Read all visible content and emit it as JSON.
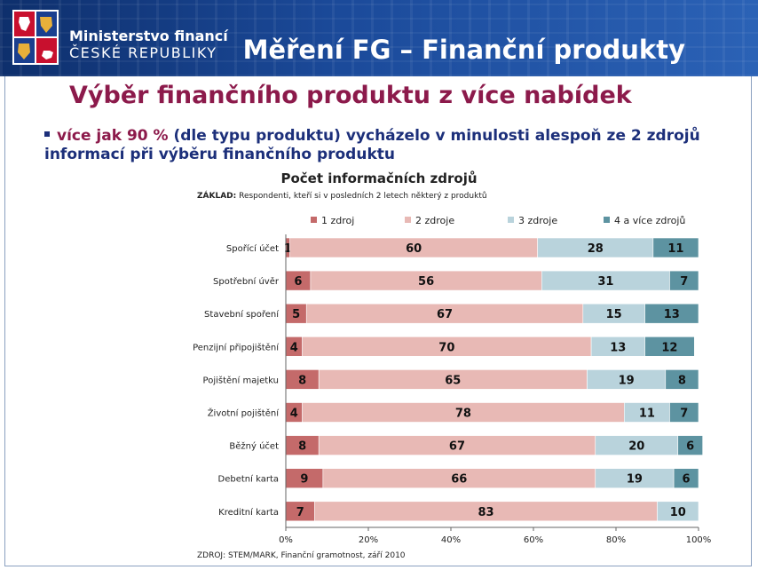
{
  "header": {
    "ministry_line1": "Ministerstvo financí",
    "ministry_line2": "ČESKÉ REPUBLIKY",
    "title": "Měření FG – Finanční produkty"
  },
  "slide": {
    "title": "Výběr finančního produktu z více nabídek",
    "bullet_highlight": "více jak 90 %",
    "bullet_rest": " (dle typu produktu) vycházelo v minulosti alespoň ze 2 zdrojů informací při výběru finančního produktu"
  },
  "zaklad": {
    "label": "ZÁKLAD:",
    "text": " Respondenti, kteří si v posledních 2 letech některý z produktů"
  },
  "source": "ZDROJ: STEM/MARK, Finanční gramotnost, září 2010",
  "colors": {
    "header_bg": "#1b4a9a",
    "title": "#8c1a4b",
    "bullet": "#1c2f7a"
  },
  "chart_data": {
    "type": "bar",
    "orientation": "horizontal",
    "stacked": "percent",
    "title": "Počet informačních zdrojů",
    "categories": [
      "Spořící účet",
      "Spotřební úvěr",
      "Stavební spoření",
      "Penzijní připojištění",
      "Pojištění majetku",
      "Životní pojištění",
      "Běžný účet",
      "Debetní karta",
      "Kreditní karta"
    ],
    "series": [
      {
        "name": "1 zdroj",
        "color": "#c46a6a",
        "values": [
          1,
          6,
          5,
          4,
          8,
          4,
          8,
          9,
          7
        ]
      },
      {
        "name": "2 zdroje",
        "color": "#e8b9b5",
        "values": [
          60,
          56,
          67,
          70,
          65,
          78,
          67,
          66,
          83
        ]
      },
      {
        "name": "3 zdroje",
        "color": "#b9d3dc",
        "values": [
          28,
          31,
          15,
          13,
          19,
          11,
          20,
          19,
          10
        ]
      },
      {
        "name": "4 a více zdrojů",
        "color": "#5d93a1",
        "values": [
          11,
          7,
          13,
          12,
          8,
          7,
          6,
          6,
          0
        ]
      }
    ],
    "x_ticks": [
      "0%",
      "20%",
      "40%",
      "60%",
      "80%",
      "100%"
    ],
    "xlim": [
      0,
      100
    ],
    "legend": "top",
    "grid": false
  }
}
